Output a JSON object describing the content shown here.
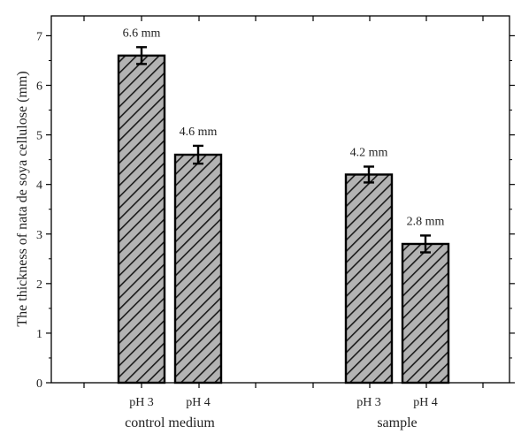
{
  "chart_data": {
    "type": "bar",
    "title": "",
    "ylabel": "The thickness of nata de soya cellulose (mm)",
    "ylim": [
      0,
      7.4
    ],
    "yticks": [
      0,
      1,
      2,
      3,
      4,
      5,
      6,
      7
    ],
    "grid": false,
    "groups": [
      {
        "label": "control medium",
        "bars": [
          {
            "category": "pH 3",
            "value": 6.6,
            "error": 0.17,
            "label": "6.6 mm"
          },
          {
            "category": "pH 4",
            "value": 4.6,
            "error": 0.18,
            "label": "4.6 mm"
          }
        ]
      },
      {
        "label": "sample",
        "bars": [
          {
            "category": "pH 3",
            "value": 4.2,
            "error": 0.16,
            "label": "4.2 mm"
          },
          {
            "category": "pH 4",
            "value": 2.8,
            "error": 0.17,
            "label": "2.8 mm"
          }
        ]
      }
    ],
    "colors": {
      "bar_fill": "#b3b3b3",
      "hatch": "#1a1a1a",
      "edge": "#000000"
    }
  }
}
